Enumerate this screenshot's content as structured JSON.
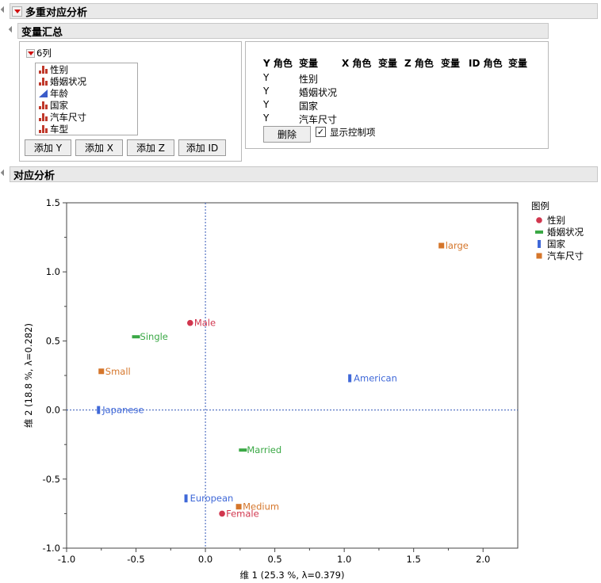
{
  "main_header": {
    "title": "多重对应分析"
  },
  "var_summary": {
    "title": "变量汇总",
    "list_title": "6列",
    "columns": [
      {
        "name": "性别",
        "icon": "nominal-bar-icon"
      },
      {
        "name": "婚姻状况",
        "icon": "nominal-bar-icon"
      },
      {
        "name": "年龄",
        "icon": "continuous-triangle-icon"
      },
      {
        "name": "国家",
        "icon": "nominal-bar-icon"
      },
      {
        "name": "汽车尺寸",
        "icon": "nominal-bar-icon"
      },
      {
        "name": "车型",
        "icon": "nominal-bar-icon"
      }
    ],
    "buttons": {
      "add_y": "添加 Y",
      "add_x": "添加 X",
      "add_z": "添加 Z",
      "add_id": "添加 ID"
    },
    "roles": {
      "headers": [
        "Y 角色",
        "变量",
        "X 角色",
        "变量",
        "Z 角色",
        "变量",
        "ID 角色",
        "变量"
      ],
      "rows": [
        {
          "role": "Y",
          "var": "性别"
        },
        {
          "role": "Y",
          "var": "婚姻状况"
        },
        {
          "role": "Y",
          "var": "国家"
        },
        {
          "role": "Y",
          "var": "汽车尺寸"
        }
      ]
    },
    "delete_button": "删除",
    "show_controls": {
      "label": "显示控制项",
      "checked": true
    }
  },
  "ca_header": {
    "title": "对应分析"
  },
  "chart_data": {
    "type": "scatter",
    "xlabel": "维 1  (25.3 %, λ=0.379)",
    "ylabel": "维 2  (18.8 %, λ=0.282)",
    "xlim": [
      -1.0,
      2.25
    ],
    "ylim": [
      -1.0,
      1.5
    ],
    "xticks": [
      -1.0,
      -0.5,
      0.0,
      0.5,
      1.0,
      1.5,
      2.0
    ],
    "xtick_labels": [
      "-1.0",
      "-0.5",
      "0.0",
      "0.5",
      "1.0",
      "1.5",
      "2.0"
    ],
    "yticks": [
      -1.0,
      -0.5,
      0.0,
      0.5,
      1.0,
      1.5
    ],
    "ytick_labels": [
      "-1.0",
      "-0.5",
      "0.0",
      "0.5",
      "1.0",
      "1.5"
    ],
    "reference_lines": {
      "x": 0,
      "y": 0
    },
    "legend": {
      "title": "图例",
      "placement": "right",
      "entries": [
        {
          "name": "性别",
          "color": "#d1364e",
          "marker": "circle"
        },
        {
          "name": "婚姻状况",
          "color": "#3aa845",
          "marker": "hbar"
        },
        {
          "name": "国家",
          "color": "#3f68d8",
          "marker": "vbar"
        },
        {
          "name": "汽车尺寸",
          "color": "#d5762b",
          "marker": "square"
        }
      ]
    },
    "series": [
      {
        "name": "性别",
        "points": [
          {
            "label": "Male",
            "x": -0.11,
            "y": 0.63
          },
          {
            "label": "Female",
            "x": 0.12,
            "y": -0.75
          }
        ]
      },
      {
        "name": "婚姻状况",
        "points": [
          {
            "label": "Single",
            "x": -0.5,
            "y": 0.53
          },
          {
            "label": "Married",
            "x": 0.27,
            "y": -0.29
          }
        ]
      },
      {
        "name": "国家",
        "points": [
          {
            "label": "American",
            "x": 1.04,
            "y": 0.23
          },
          {
            "label": "Japanese",
            "x": -0.77,
            "y": 0.0
          },
          {
            "label": "European",
            "x": -0.14,
            "y": -0.64
          }
        ]
      },
      {
        "name": "汽车尺寸",
        "points": [
          {
            "label": "large",
            "x": 1.7,
            "y": 1.19
          },
          {
            "label": "Small",
            "x": -0.75,
            "y": 0.28
          },
          {
            "label": "Medium",
            "x": 0.24,
            "y": -0.7
          }
        ]
      }
    ]
  }
}
